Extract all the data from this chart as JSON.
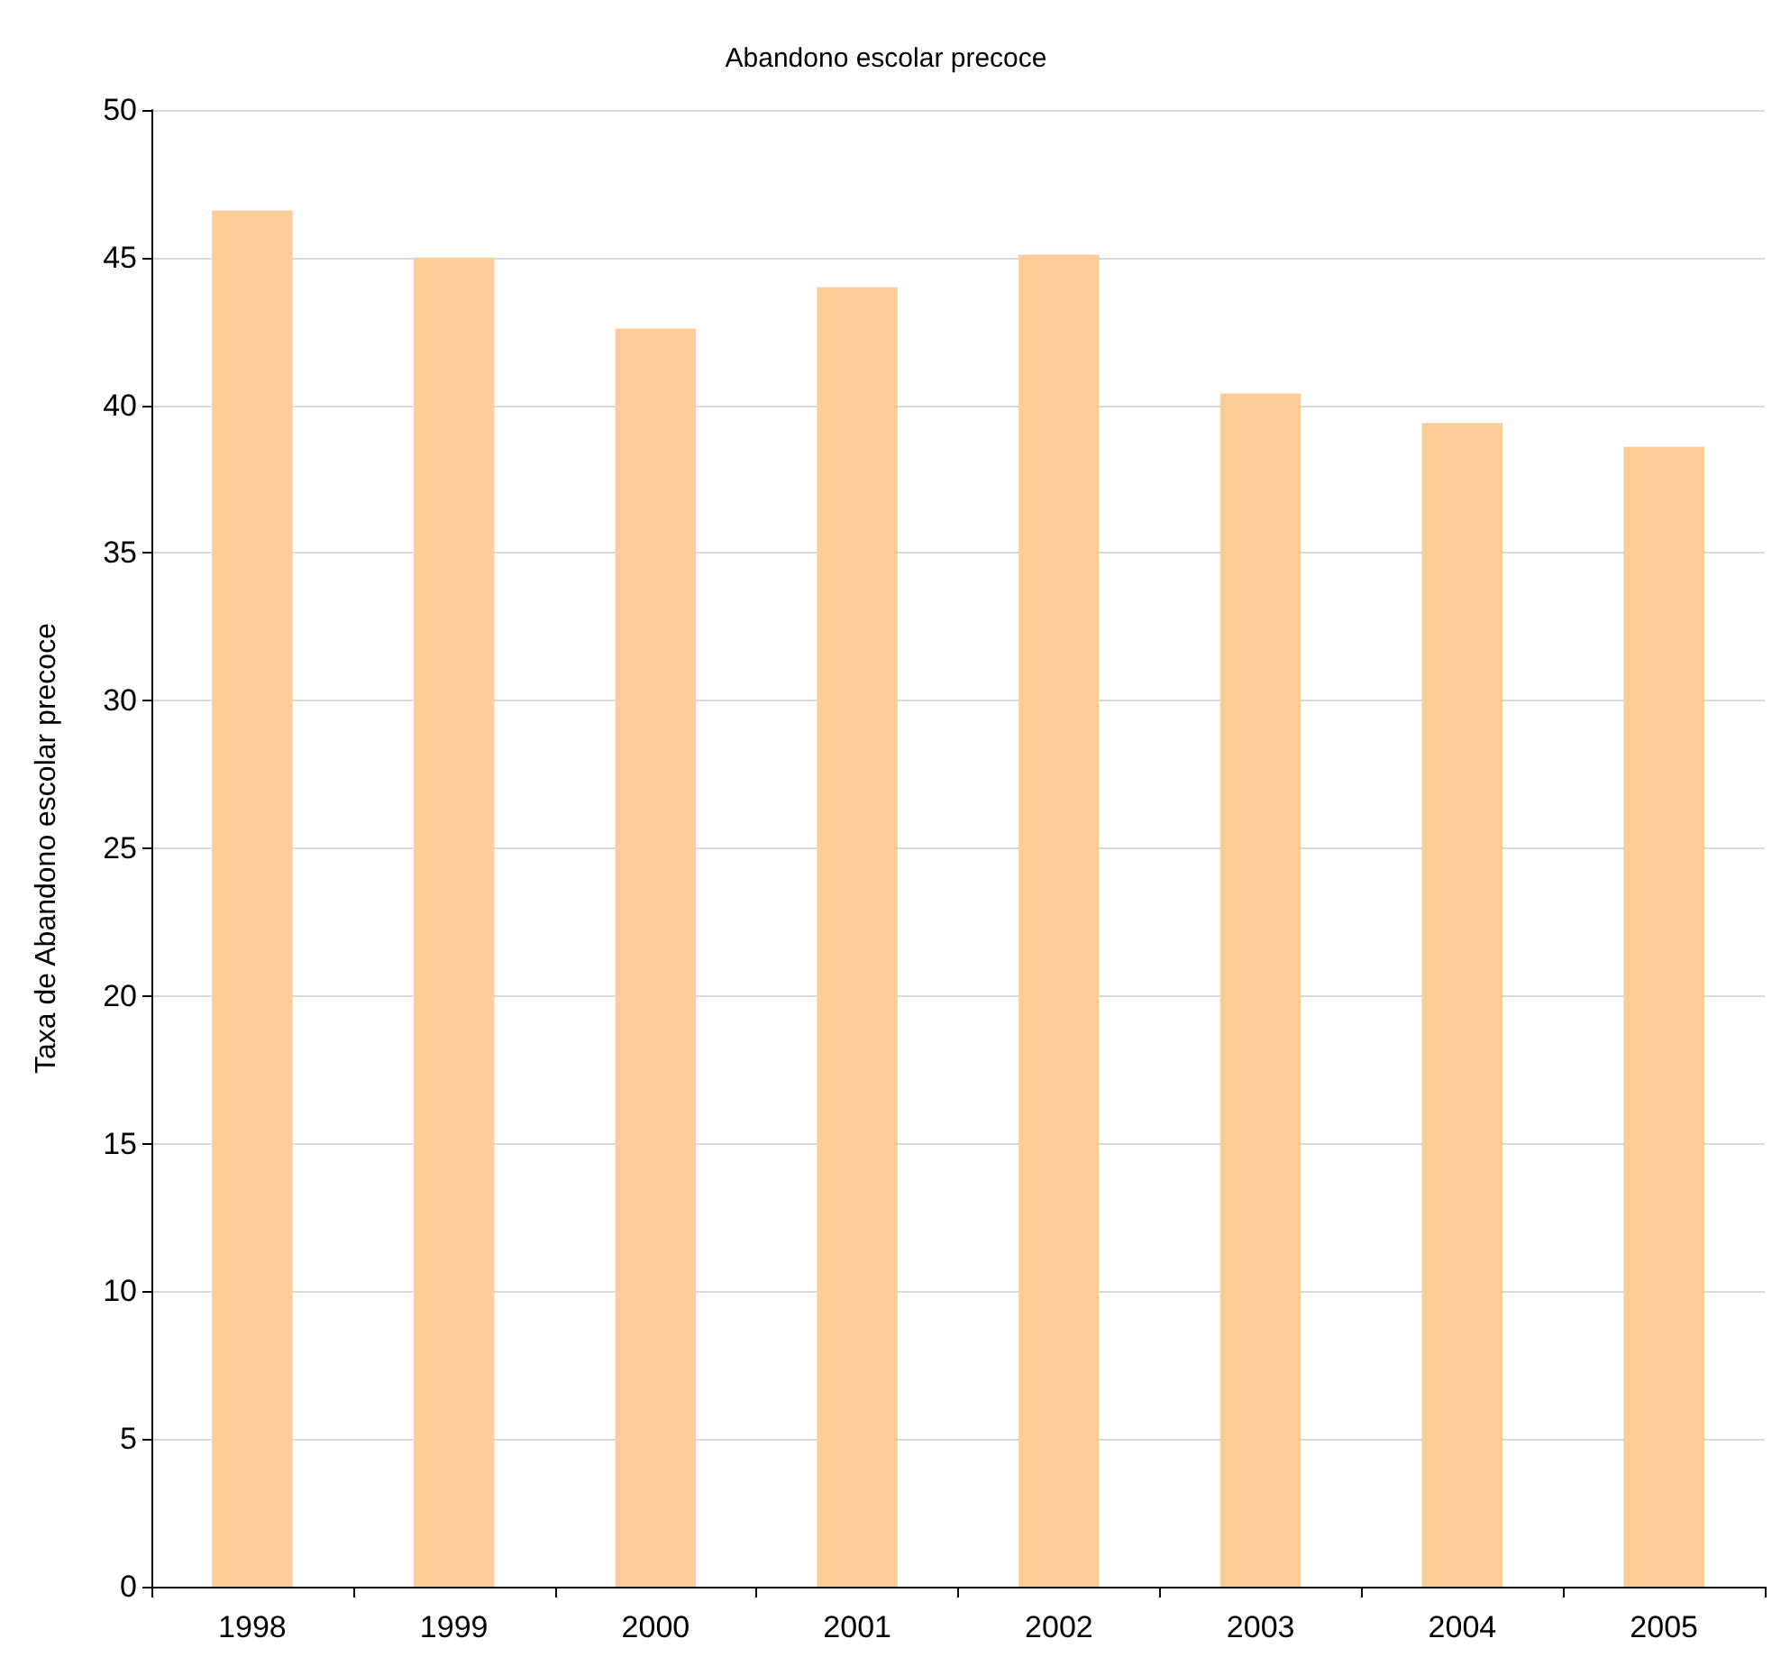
{
  "chart_data": {
    "type": "bar",
    "title": "Abandono escolar precoce",
    "ylabel": "Taxa de Abandono escolar precoce",
    "categories": [
      "1998",
      "1999",
      "2000",
      "2001",
      "2002",
      "2003",
      "2004",
      "2005"
    ],
    "values": [
      46.6,
      45.0,
      42.6,
      44.0,
      45.1,
      40.4,
      39.4,
      38.6
    ],
    "color": "#fecc99",
    "ylim": [
      0,
      50
    ],
    "yticks": [
      0,
      5,
      10,
      15,
      20,
      25,
      30,
      35,
      40,
      45,
      50
    ],
    "grid": "y"
  }
}
